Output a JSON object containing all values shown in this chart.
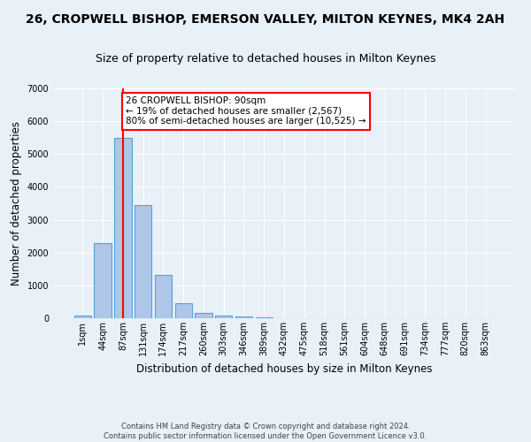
{
  "title": "26, CROPWELL BISHOP, EMERSON VALLEY, MILTON KEYNES, MK4 2AH",
  "subtitle": "Size of property relative to detached houses in Milton Keynes",
  "xlabel": "Distribution of detached houses by size in Milton Keynes",
  "ylabel": "Number of detached properties",
  "footer_line1": "Contains HM Land Registry data © Crown copyright and database right 2024.",
  "footer_line2": "Contains public sector information licensed under the Open Government Licence v3.0.",
  "bar_labels": [
    "1sqm",
    "44sqm",
    "87sqm",
    "131sqm",
    "174sqm",
    "217sqm",
    "260sqm",
    "303sqm",
    "346sqm",
    "389sqm",
    "432sqm",
    "475sqm",
    "518sqm",
    "561sqm",
    "604sqm",
    "648sqm",
    "691sqm",
    "734sqm",
    "777sqm",
    "820sqm",
    "863sqm"
  ],
  "bar_values": [
    75,
    2280,
    5480,
    3450,
    1320,
    470,
    155,
    90,
    55,
    30,
    0,
    0,
    0,
    0,
    0,
    0,
    0,
    0,
    0,
    0,
    0
  ],
  "bar_color": "#aec6e8",
  "bar_edge_color": "#5a9fd4",
  "vline_x": 2,
  "vline_color": "red",
  "annotation_text": "26 CROPWELL BISHOP: 90sqm\n← 19% of detached houses are smaller (2,567)\n80% of semi-detached houses are larger (10,525) →",
  "annotation_box_color": "white",
  "annotation_box_edge": "red",
  "ylim": [
    0,
    7000
  ],
  "yticks": [
    0,
    1000,
    2000,
    3000,
    4000,
    5000,
    6000,
    7000
  ],
  "bg_color": "#e8f0f8",
  "grid_color": "white",
  "title_fontsize": 10,
  "subtitle_fontsize": 9,
  "axis_label_fontsize": 8.5,
  "tick_fontsize": 7,
  "annotation_fontsize": 7.5,
  "footer_fontsize": 6
}
